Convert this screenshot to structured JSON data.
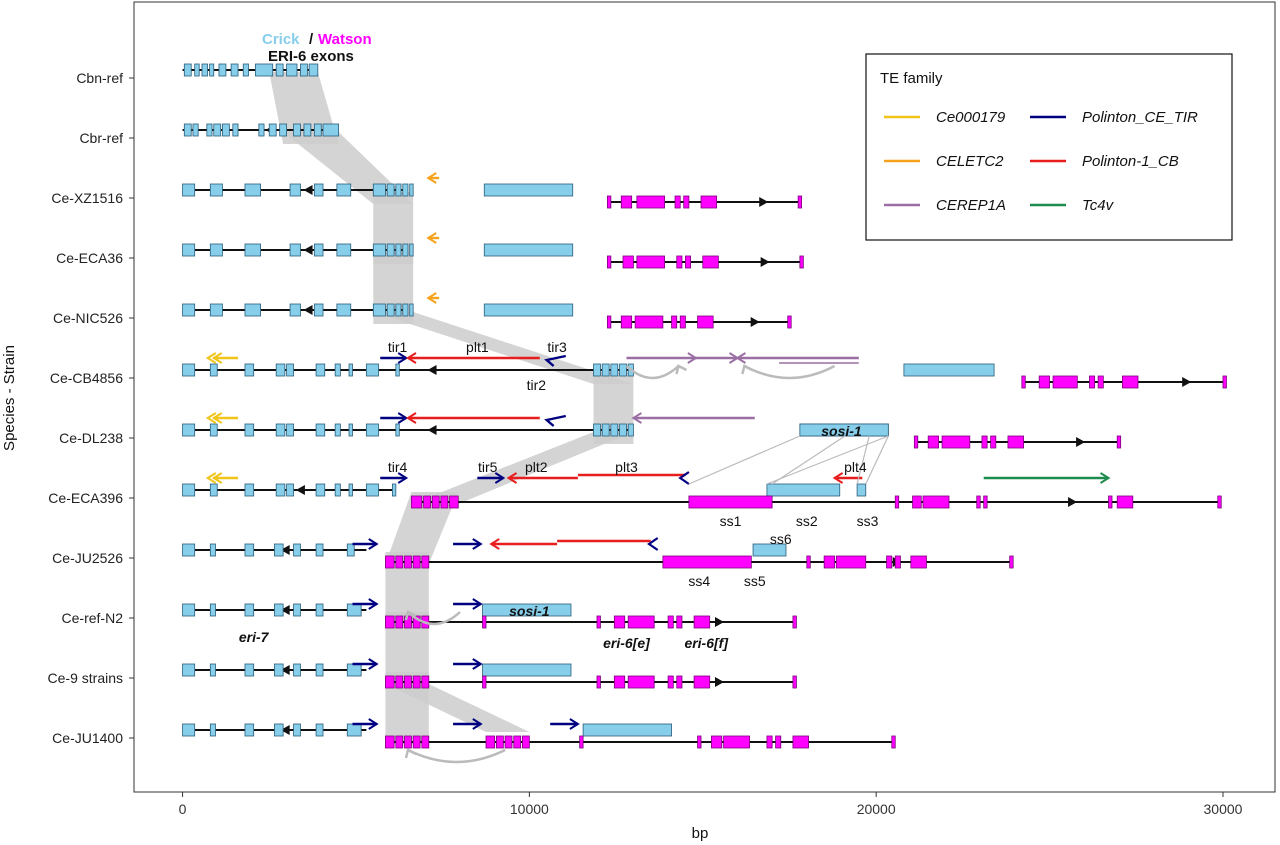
{
  "axes": {
    "x_label": "bp",
    "y_label": "Species - Strain",
    "x_min": -1400,
    "x_max": 31500,
    "x_ticks": [
      {
        "value": 0,
        "label": "0"
      },
      {
        "value": 10000,
        "label": "10000"
      },
      {
        "value": 20000,
        "label": "20000"
      },
      {
        "value": 30000,
        "label": "30000"
      }
    ]
  },
  "header": {
    "crick": "Crick",
    "slash": "/",
    "watson": "Watson",
    "exons_label": "ERI-6 exons"
  },
  "colors": {
    "crick": "#87CEEB",
    "watson": "#FF00FF",
    "shade": "#cccccc",
    "te": {
      "Ce000179": "#F0C419",
      "CELETC2": "#F7A21B",
      "CEREP1A": "#9B6FA3",
      "Polinton_CE_TIR": "#000080",
      "Polinton-1_CB": "#E81E1E",
      "Tc4v": "#1E8C4E"
    }
  },
  "legend": {
    "title": "TE family",
    "items": [
      {
        "name": "Ce000179",
        "key": "Ce000179"
      },
      {
        "name": "Polinton_CE_TIR",
        "key": "Polinton_CE_TIR"
      },
      {
        "name": "CELETC2",
        "key": "CELETC2"
      },
      {
        "name": "Polinton-1_CB",
        "key": "Polinton-1_CB"
      },
      {
        "name": "CEREP1A",
        "key": "CEREP1A"
      },
      {
        "name": "Tc4v",
        "key": "Tc4v"
      }
    ]
  },
  "gene_labels": {
    "eri7": "eri-7",
    "sosi1": "sosi-1",
    "eri6e": "eri-6[e]",
    "eri6f": "eri-6[f]"
  },
  "segment_labels": [
    "ss1",
    "ss2",
    "ss3",
    "ss4",
    "ss5",
    "ss6"
  ],
  "te_labels": [
    "tir1",
    "plt1",
    "tir3",
    "tir2",
    "tir4",
    "tir5",
    "plt2",
    "plt3",
    "plt4"
  ],
  "strains": [
    {
      "name": "Cbn-ref",
      "line": [
        0,
        3900
      ],
      "crick": [
        [
          50,
          250
        ],
        [
          350,
          480
        ],
        [
          560,
          720
        ],
        [
          780,
          900
        ],
        [
          1050,
          1250
        ],
        [
          1400,
          1600
        ],
        [
          1750,
          1900
        ],
        [
          2100,
          2600
        ],
        [
          2700,
          2900
        ],
        [
          3000,
          3300
        ],
        [
          3400,
          3600
        ],
        [
          3650,
          3900
        ]
      ],
      "watson": []
    },
    {
      "name": "Cbr-ref",
      "line": [
        0,
        4500
      ],
      "crick": [
        [
          50,
          250
        ],
        [
          300,
          450
        ],
        [
          700,
          850
        ],
        [
          900,
          1100
        ],
        [
          1150,
          1350
        ],
        [
          1450,
          1600
        ],
        [
          2200,
          2350
        ],
        [
          2500,
          2700
        ],
        [
          2800,
          3000
        ],
        [
          3200,
          3400
        ],
        [
          3500,
          3700
        ],
        [
          3800,
          4000
        ],
        [
          4050,
          4500
        ]
      ],
      "watson": []
    },
    {
      "name": "Ce-XZ1516",
      "line": [
        0,
        6500
      ],
      "crick": [
        [
          0,
          350
        ],
        [
          800,
          1150
        ],
        [
          1800,
          2250
        ],
        [
          3100,
          3400
        ],
        [
          3800,
          4050
        ],
        [
          4450,
          4850
        ],
        [
          5500,
          5850
        ],
        [
          5900,
          6100
        ],
        [
          6150,
          6300
        ],
        [
          6350,
          6500
        ],
        [
          6550,
          6650
        ],
        [
          8700,
          11250
        ]
      ],
      "watson": [
        [
          12250,
          12350
        ],
        [
          12650,
          12950
        ],
        [
          13100,
          13900
        ],
        [
          14200,
          14350
        ],
        [
          14450,
          14600
        ],
        [
          14950,
          15400
        ],
        [
          17750,
          17850
        ]
      ],
      "wline": [
        12250,
        17800
      ]
    },
    {
      "name": "Ce-ECA36",
      "line": [
        0,
        6500
      ],
      "crick": [
        [
          0,
          350
        ],
        [
          800,
          1150
        ],
        [
          1800,
          2250
        ],
        [
          3100,
          3400
        ],
        [
          3800,
          4050
        ],
        [
          4450,
          4850
        ],
        [
          5500,
          5850
        ],
        [
          5900,
          6100
        ],
        [
          6150,
          6300
        ],
        [
          6350,
          6500
        ],
        [
          6550,
          6650
        ],
        [
          8700,
          11250
        ]
      ],
      "watson": [
        [
          12250,
          12350
        ],
        [
          12700,
          13000
        ],
        [
          13100,
          13900
        ],
        [
          14250,
          14400
        ],
        [
          14500,
          14650
        ],
        [
          15000,
          15450
        ],
        [
          17800,
          17900
        ]
      ],
      "wline": [
        12250,
        17850
      ]
    },
    {
      "name": "Ce-NIC526",
      "line": [
        0,
        6500
      ],
      "crick": [
        [
          0,
          350
        ],
        [
          800,
          1150
        ],
        [
          1800,
          2250
        ],
        [
          3100,
          3400
        ],
        [
          3800,
          4050
        ],
        [
          4450,
          4850
        ],
        [
          5500,
          5850
        ],
        [
          5900,
          6100
        ],
        [
          6150,
          6300
        ],
        [
          6350,
          6500
        ],
        [
          6550,
          6650
        ],
        [
          8700,
          11250
        ]
      ],
      "watson": [
        [
          12250,
          12350
        ],
        [
          12650,
          12950
        ],
        [
          13050,
          13850
        ],
        [
          14100,
          14250
        ],
        [
          14350,
          14500
        ],
        [
          14850,
          15300
        ],
        [
          17450,
          17550
        ]
      ],
      "wline": [
        12250,
        17500
      ]
    },
    {
      "name": "Ce-CB4856",
      "line": [
        0,
        13000
      ],
      "crick": [
        [
          0,
          350
        ],
        [
          800,
          1000
        ],
        [
          1800,
          2050
        ],
        [
          2700,
          2950
        ],
        [
          3000,
          3200
        ],
        [
          3850,
          4100
        ],
        [
          4400,
          4550
        ],
        [
          4800,
          4900
        ],
        [
          5300,
          5650
        ],
        [
          6150,
          6250
        ],
        [
          11850,
          12050
        ],
        [
          12100,
          12300
        ],
        [
          12350,
          12550
        ],
        [
          12600,
          12800
        ],
        [
          12850,
          13000
        ],
        [
          20800,
          23400
        ]
      ],
      "watson": [
        [
          24200,
          24300
        ],
        [
          24700,
          25000
        ],
        [
          25100,
          25800
        ],
        [
          26150,
          26300
        ],
        [
          26400,
          26550
        ],
        [
          27100,
          27550
        ],
        [
          30000,
          30100
        ]
      ],
      "wline": [
        24200,
        30050
      ]
    },
    {
      "name": "Ce-DL238",
      "line": [
        0,
        13000
      ],
      "crick": [
        [
          0,
          350
        ],
        [
          800,
          1000
        ],
        [
          1800,
          2050
        ],
        [
          2700,
          2950
        ],
        [
          3000,
          3200
        ],
        [
          3850,
          4100
        ],
        [
          4400,
          4550
        ],
        [
          4800,
          4900
        ],
        [
          5300,
          5650
        ],
        [
          6150,
          6250
        ],
        [
          11850,
          12050
        ],
        [
          12100,
          12300
        ],
        [
          12350,
          12550
        ],
        [
          12600,
          12800
        ],
        [
          12850,
          13000
        ],
        [
          17800,
          20350
        ]
      ],
      "watson": [
        [
          21100,
          21200
        ],
        [
          21500,
          21800
        ],
        [
          21900,
          22700
        ],
        [
          23050,
          23200
        ],
        [
          23300,
          23450
        ],
        [
          23800,
          24250
        ],
        [
          26950,
          27050
        ]
      ],
      "wline": [
        21100,
        27000
      ]
    },
    {
      "name": "Ce-ECA396",
      "line": [
        0,
        6100
      ],
      "crick": [
        [
          0,
          350
        ],
        [
          800,
          1000
        ],
        [
          1800,
          2050
        ],
        [
          2700,
          2950
        ],
        [
          3000,
          3200
        ],
        [
          3850,
          4100
        ],
        [
          4400,
          4550
        ],
        [
          4800,
          4900
        ],
        [
          5300,
          5650
        ],
        [
          6050,
          6150
        ],
        [
          16850,
          18950
        ],
        [
          19450,
          19700
        ]
      ],
      "watson": [
        [
          6600,
          6900
        ],
        [
          6950,
          7150
        ],
        [
          7200,
          7400
        ],
        [
          7450,
          7650
        ],
        [
          7700,
          7950
        ],
        [
          14600,
          17000
        ],
        [
          20550,
          20650
        ],
        [
          21050,
          21300
        ],
        [
          21350,
          22100
        ],
        [
          22900,
          23000
        ],
        [
          23100,
          23200
        ],
        [
          26700,
          26800
        ],
        [
          26950,
          27400
        ],
        [
          29850,
          29950
        ]
      ],
      "wline": [
        6600,
        29900
      ]
    },
    {
      "name": "Ce-JU2526",
      "line": [
        0,
        5300
      ],
      "crick": [
        [
          0,
          350
        ],
        [
          800,
          950
        ],
        [
          1800,
          2050
        ],
        [
          2650,
          2900
        ],
        [
          3200,
          3400
        ],
        [
          3850,
          4050
        ],
        [
          4750,
          4950
        ],
        [
          16450,
          17400
        ],
        [
          17400,
          17400
        ]
      ],
      "watson": [
        [
          5850,
          6100
        ],
        [
          6150,
          6350
        ],
        [
          6400,
          6600
        ],
        [
          6650,
          6850
        ],
        [
          6900,
          7100
        ],
        [
          13850,
          16400
        ],
        [
          18000,
          18100
        ],
        [
          18500,
          18800
        ],
        [
          18850,
          19700
        ],
        [
          20300,
          20450
        ],
        [
          20550,
          20700
        ],
        [
          21000,
          21450
        ],
        [
          23850,
          23950
        ]
      ],
      "wline": [
        5850,
        23900
      ]
    },
    {
      "name": "Ce-ref-N2",
      "line": [
        0,
        5300
      ],
      "crick": [
        [
          0,
          350
        ],
        [
          800,
          950
        ],
        [
          1800,
          2050
        ],
        [
          2650,
          2900
        ],
        [
          3200,
          3400
        ],
        [
          3850,
          4050
        ],
        [
          4750,
          5150
        ],
        [
          8650,
          11200
        ]
      ],
      "watson": [
        [
          5850,
          6100
        ],
        [
          6150,
          6350
        ],
        [
          6400,
          6600
        ],
        [
          6650,
          6850
        ],
        [
          6900,
          7100
        ],
        [
          8650,
          8750
        ],
        [
          11950,
          12050
        ],
        [
          12450,
          12750
        ],
        [
          12850,
          13600
        ],
        [
          14000,
          14150
        ],
        [
          14250,
          14400
        ],
        [
          14750,
          15200
        ],
        [
          17600,
          17700
        ]
      ],
      "wline": [
        5850,
        17650
      ]
    },
    {
      "name": "Ce-9 strains",
      "line": [
        0,
        5300
      ],
      "crick": [
        [
          0,
          350
        ],
        [
          800,
          950
        ],
        [
          1800,
          2050
        ],
        [
          2650,
          2900
        ],
        [
          3200,
          3400
        ],
        [
          3850,
          4050
        ],
        [
          4750,
          5150
        ],
        [
          8650,
          11200
        ]
      ],
      "watson": [
        [
          5850,
          6100
        ],
        [
          6150,
          6350
        ],
        [
          6400,
          6600
        ],
        [
          6650,
          6850
        ],
        [
          6900,
          7100
        ],
        [
          8650,
          8750
        ],
        [
          11950,
          12050
        ],
        [
          12450,
          12750
        ],
        [
          12850,
          13600
        ],
        [
          14000,
          14150
        ],
        [
          14250,
          14400
        ],
        [
          14750,
          15200
        ],
        [
          17600,
          17700
        ]
      ],
      "wline": [
        5850,
        17650
      ]
    },
    {
      "name": "Ce-JU1400",
      "line": [
        0,
        5300
      ],
      "crick": [
        [
          0,
          350
        ],
        [
          800,
          950
        ],
        [
          1800,
          2050
        ],
        [
          2650,
          2900
        ],
        [
          3200,
          3400
        ],
        [
          3850,
          4050
        ],
        [
          4750,
          5150
        ],
        [
          11550,
          14100
        ]
      ],
      "watson": [
        [
          5850,
          6100
        ],
        [
          6150,
          6350
        ],
        [
          6400,
          6600
        ],
        [
          6650,
          6850
        ],
        [
          6900,
          7100
        ],
        [
          8750,
          9000
        ],
        [
          9050,
          9250
        ],
        [
          9300,
          9500
        ],
        [
          9550,
          9750
        ],
        [
          9800,
          10000
        ],
        [
          11450,
          11550
        ],
        [
          14850,
          14950
        ],
        [
          15250,
          15550
        ],
        [
          15600,
          16350
        ],
        [
          16850,
          17000
        ],
        [
          17100,
          17250
        ],
        [
          17600,
          18050
        ],
        [
          20450,
          20550
        ]
      ],
      "wline": [
        5850,
        20500
      ]
    }
  ],
  "chart_data": {
    "type": "diagram",
    "x_axis": {
      "label": "bp",
      "ticks": [
        0,
        10000,
        20000,
        30000
      ]
    },
    "y_axis": {
      "label": "Species - Strain"
    },
    "rows": [
      "Cbn-ref",
      "Cbr-ref",
      "Ce-XZ1516",
      "Ce-ECA36",
      "Ce-NIC526",
      "Ce-CB4856",
      "Ce-DL238",
      "Ce-ECA396",
      "Ce-JU2526",
      "Ce-ref-N2",
      "Ce-9 strains",
      "Ce-JU1400"
    ],
    "legend_title": "TE family",
    "legend": [
      "Ce000179",
      "Polinton_CE_TIR",
      "CELETC2",
      "Polinton-1_CB",
      "CEREP1A",
      "Tc4v"
    ]
  }
}
